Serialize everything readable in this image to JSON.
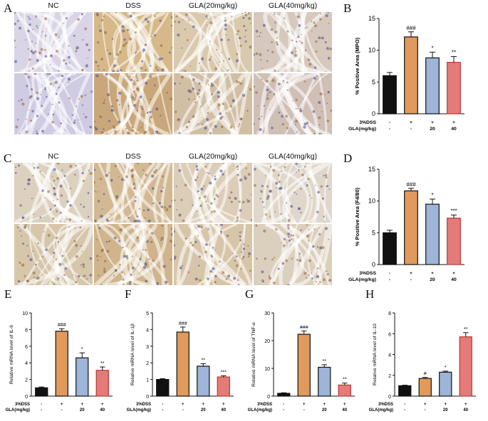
{
  "panel_letters": {
    "A": "A",
    "B": "B",
    "C": "C",
    "D": "D",
    "E": "E",
    "F": "F",
    "G": "G",
    "H": "H"
  },
  "micro_a": {
    "labels": [
      "NC",
      "DSS",
      "GLA(20mg/kg)",
      "GLA(40mg/kg)"
    ],
    "top_tint": [
      "#d9d4e6",
      "#d6b889",
      "#d9c9ad",
      "#d6c8bc"
    ],
    "bottom_tint": [
      "#cfcbe2",
      "#c9a77a",
      "#d1bfa5",
      "#cfbfb5"
    ]
  },
  "micro_c": {
    "labels": [
      "NC",
      "DSS",
      "GLA(20mg/kg)",
      "GLA(40mg/kg)"
    ],
    "top_tint": [
      "#dcd1bf",
      "#d2b993",
      "#dbcdb7",
      "#dfd7cb"
    ],
    "bottom_tint": [
      "#d6c6aa",
      "#cfb48c",
      "#d7c5a8",
      "#dbcfbd"
    ]
  },
  "colors": {
    "nc": "#111111",
    "dss": "#e09a5c",
    "gla20": "#9eb4d8",
    "gla40": "#e57b78",
    "gla40_edge": "#b53a35"
  },
  "treatment_table": {
    "row1_label": "3%DSS",
    "row2_label": "GLA(mg/kg)",
    "row1": [
      "-",
      "+",
      "+",
      "+"
    ],
    "row2": [
      "-",
      "-",
      "20",
      "40"
    ]
  },
  "chart_data": [
    {
      "id": "B",
      "type": "bar",
      "ylabel": "% Positive Area (MPO)",
      "ylim": [
        0,
        15
      ],
      "yticks": [
        0,
        5,
        10,
        15
      ],
      "values": [
        6.0,
        12.1,
        8.8,
        8.1
      ],
      "errors": [
        0.5,
        0.8,
        0.9,
        0.9
      ],
      "sig": [
        "",
        "###",
        "*",
        "**"
      ]
    },
    {
      "id": "D",
      "type": "bar",
      "ylabel": "% Positive Area (F4/80)",
      "ylim": [
        0,
        15
      ],
      "yticks": [
        0,
        5,
        10,
        15
      ],
      "values": [
        5.0,
        11.6,
        9.5,
        7.3
      ],
      "errors": [
        0.4,
        0.4,
        0.8,
        0.5
      ],
      "sig": [
        "",
        "###",
        "*",
        "***"
      ]
    },
    {
      "id": "E",
      "type": "bar",
      "ylabel": "Relative mRNA level of IL-6",
      "ylim": [
        0,
        10
      ],
      "yticks": [
        0,
        2,
        4,
        6,
        8,
        10
      ],
      "values": [
        1.0,
        7.8,
        4.6,
        3.1
      ],
      "errors": [
        0.1,
        0.3,
        0.6,
        0.4
      ],
      "sig": [
        "",
        "###",
        "*",
        "**"
      ]
    },
    {
      "id": "F",
      "type": "bar",
      "ylabel": "Relative mRNA level of IL-1β",
      "ylim": [
        0,
        5
      ],
      "yticks": [
        0,
        1,
        2,
        3,
        4,
        5
      ],
      "values": [
        1.0,
        3.85,
        1.8,
        1.15
      ],
      "errors": [
        0.05,
        0.3,
        0.15,
        0.07
      ],
      "sig": [
        "",
        "###",
        "**",
        "***"
      ]
    },
    {
      "id": "G",
      "type": "bar",
      "ylabel": "Relative mRNA level of TNF-α",
      "ylim": [
        0,
        30
      ],
      "yticks": [
        0,
        10,
        20,
        30
      ],
      "values": [
        1.0,
        22.3,
        10.4,
        4.0
      ],
      "errors": [
        0.2,
        1.2,
        0.9,
        0.7
      ],
      "sig": [
        "",
        "###",
        "**",
        "**"
      ]
    },
    {
      "id": "H",
      "type": "bar",
      "ylabel": "Relative mRNA level of IL-10",
      "ylim": [
        0,
        8
      ],
      "yticks": [
        0,
        2,
        4,
        6,
        8
      ],
      "values": [
        1.0,
        1.7,
        2.3,
        5.7
      ],
      "errors": [
        0.05,
        0.1,
        0.1,
        0.4
      ],
      "sig": [
        "",
        "#",
        "*",
        "**"
      ]
    }
  ]
}
